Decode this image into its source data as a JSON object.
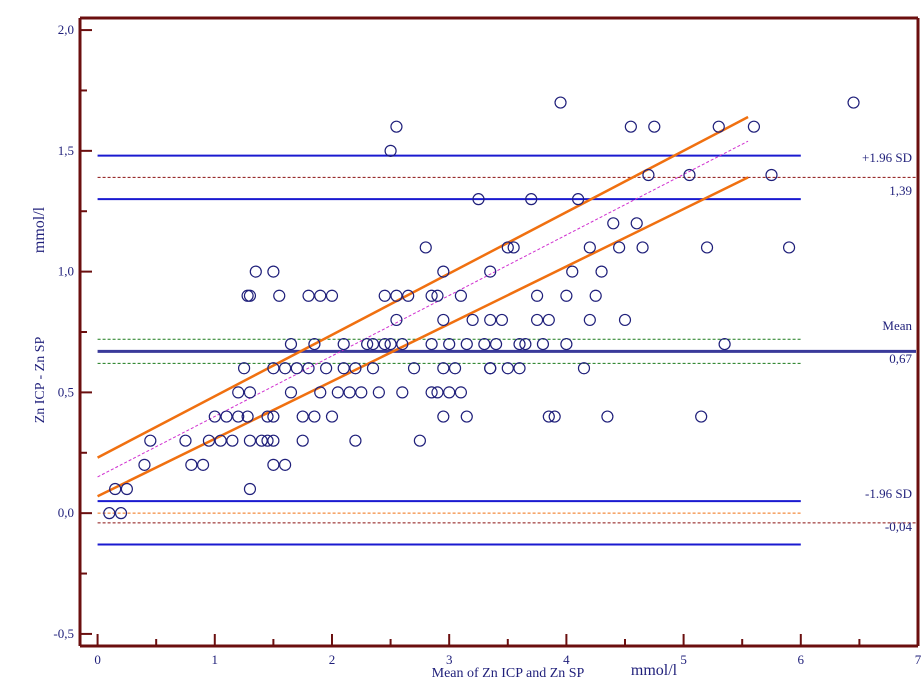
{
  "chart_data": {
    "type": "scatter",
    "title": "",
    "xlabel": "Mean of Zn ICP and Zn SP",
    "xunit": "mmol/l",
    "ylabel": "Zn ICP - Zn SP",
    "yunit": "mmol/l",
    "xlim": [
      -0.15,
      7
    ],
    "ylim": [
      -0.55,
      2.05
    ],
    "x_ticks": [
      "0",
      "1",
      "2",
      "3",
      "4",
      "5",
      "6",
      "7"
    ],
    "x_tick_values": [
      0,
      1,
      2,
      3,
      4,
      5,
      6,
      7
    ],
    "y_ticks": [
      "-0,5",
      "0,0",
      "0,5",
      "1,0",
      "1,5",
      "2,0"
    ],
    "y_tick_values": [
      -0.5,
      0,
      0.5,
      1.0,
      1.5,
      2.0
    ],
    "points": [
      [
        0.1,
        0.0
      ],
      [
        0.2,
        0.0
      ],
      [
        0.15,
        0.1
      ],
      [
        0.25,
        0.1
      ],
      [
        0.4,
        0.2
      ],
      [
        0.45,
        0.3
      ],
      [
        0.75,
        0.3
      ],
      [
        0.8,
        0.2
      ],
      [
        0.9,
        0.2
      ],
      [
        0.95,
        0.3
      ],
      [
        1.0,
        0.4
      ],
      [
        1.05,
        0.3
      ],
      [
        1.1,
        0.4
      ],
      [
        1.15,
        0.3
      ],
      [
        1.2,
        0.5
      ],
      [
        1.2,
        0.4
      ],
      [
        1.25,
        0.6
      ],
      [
        1.28,
        0.4
      ],
      [
        1.3,
        0.3
      ],
      [
        1.3,
        0.5
      ],
      [
        1.28,
        0.9
      ],
      [
        1.3,
        0.9
      ],
      [
        1.3,
        0.1
      ],
      [
        1.35,
        1.0
      ],
      [
        1.4,
        0.3
      ],
      [
        1.45,
        0.3
      ],
      [
        1.45,
        0.4
      ],
      [
        1.5,
        0.3
      ],
      [
        1.5,
        0.4
      ],
      [
        1.5,
        0.6
      ],
      [
        1.5,
        1.0
      ],
      [
        1.5,
        0.2
      ],
      [
        1.55,
        0.9
      ],
      [
        1.6,
        0.2
      ],
      [
        1.6,
        0.6
      ],
      [
        1.65,
        0.7
      ],
      [
        1.65,
        0.5
      ],
      [
        1.7,
        0.6
      ],
      [
        1.75,
        0.4
      ],
      [
        1.75,
        0.3
      ],
      [
        1.8,
        0.9
      ],
      [
        1.8,
        0.6
      ],
      [
        1.85,
        0.4
      ],
      [
        1.85,
        0.7
      ],
      [
        1.9,
        0.5
      ],
      [
        1.9,
        0.9
      ],
      [
        1.95,
        0.6
      ],
      [
        2.0,
        0.4
      ],
      [
        2.0,
        0.9
      ],
      [
        2.05,
        0.5
      ],
      [
        2.1,
        0.6
      ],
      [
        2.1,
        0.7
      ],
      [
        2.15,
        0.5
      ],
      [
        2.2,
        0.6
      ],
      [
        2.2,
        0.3
      ],
      [
        2.25,
        0.5
      ],
      [
        2.3,
        0.7
      ],
      [
        2.35,
        0.6
      ],
      [
        2.35,
        0.7
      ],
      [
        2.4,
        0.5
      ],
      [
        2.45,
        0.9
      ],
      [
        2.45,
        0.7
      ],
      [
        2.5,
        1.5
      ],
      [
        2.5,
        0.7
      ],
      [
        2.55,
        0.9
      ],
      [
        2.55,
        1.6
      ],
      [
        2.55,
        0.8
      ],
      [
        2.6,
        0.7
      ],
      [
        2.6,
        0.5
      ],
      [
        2.65,
        0.9
      ],
      [
        2.7,
        0.6
      ],
      [
        2.75,
        0.3
      ],
      [
        2.8,
        1.1
      ],
      [
        2.85,
        0.5
      ],
      [
        2.85,
        0.7
      ],
      [
        2.85,
        0.9
      ],
      [
        2.9,
        0.5
      ],
      [
        2.9,
        0.9
      ],
      [
        2.95,
        0.4
      ],
      [
        2.95,
        0.6
      ],
      [
        2.95,
        1.0
      ],
      [
        2.95,
        0.8
      ],
      [
        3.0,
        0.7
      ],
      [
        3.0,
        0.5
      ],
      [
        3.05,
        0.6
      ],
      [
        3.1,
        0.9
      ],
      [
        3.1,
        0.5
      ],
      [
        3.15,
        0.4
      ],
      [
        3.15,
        0.7
      ],
      [
        3.2,
        0.8
      ],
      [
        3.25,
        1.3
      ],
      [
        3.3,
        0.7
      ],
      [
        3.35,
        0.6
      ],
      [
        3.35,
        0.8
      ],
      [
        3.35,
        1.0
      ],
      [
        3.35,
        0.6
      ],
      [
        3.4,
        0.7
      ],
      [
        3.45,
        0.8
      ],
      [
        3.5,
        0.6
      ],
      [
        3.5,
        1.1
      ],
      [
        3.55,
        1.1
      ],
      [
        3.6,
        0.7
      ],
      [
        3.6,
        0.6
      ],
      [
        3.65,
        0.7
      ],
      [
        3.7,
        1.3
      ],
      [
        3.75,
        0.8
      ],
      [
        3.75,
        0.9
      ],
      [
        3.8,
        0.7
      ],
      [
        3.85,
        0.4
      ],
      [
        3.85,
        0.8
      ],
      [
        3.9,
        0.4
      ],
      [
        3.95,
        1.7
      ],
      [
        4.0,
        0.7
      ],
      [
        4.0,
        0.9
      ],
      [
        4.05,
        1.0
      ],
      [
        4.1,
        1.3
      ],
      [
        4.15,
        0.6
      ],
      [
        4.2,
        0.8
      ],
      [
        4.2,
        1.1
      ],
      [
        4.25,
        0.9
      ],
      [
        4.3,
        1.0
      ],
      [
        4.35,
        0.4
      ],
      [
        4.4,
        1.2
      ],
      [
        4.45,
        1.1
      ],
      [
        4.5,
        0.8
      ],
      [
        4.55,
        1.6
      ],
      [
        4.6,
        1.2
      ],
      [
        4.65,
        1.1
      ],
      [
        4.7,
        1.4
      ],
      [
        4.75,
        1.6
      ],
      [
        5.05,
        1.4
      ],
      [
        5.15,
        0.4
      ],
      [
        5.2,
        1.1
      ],
      [
        5.35,
        0.7
      ],
      [
        5.3,
        1.6
      ],
      [
        5.6,
        1.6
      ],
      [
        5.75,
        1.4
      ],
      [
        5.9,
        1.1
      ],
      [
        6.45,
        1.7
      ]
    ],
    "reference_lines": {
      "mean": 0.67,
      "upper_loa": 1.39,
      "lower_loa": -0.04,
      "mean_ci": [
        0.62,
        0.72
      ],
      "upper_loa_ci": [
        1.3,
        1.48
      ],
      "lower_loa_ci": [
        -0.13,
        0.05
      ],
      "zero_line": 0.0
    },
    "regression": {
      "start": [
        0.0,
        0.15
      ],
      "end": [
        5.55,
        1.54
      ],
      "ci_upper": [
        [
          0.0,
          0.23
        ],
        [
          5.55,
          1.64
        ]
      ],
      "ci_lower": [
        [
          0.0,
          0.07
        ],
        [
          5.55,
          1.39
        ]
      ]
    },
    "annotations": {
      "upper_label": "+1.96 SD",
      "upper_value": "1,39",
      "mean_label": "Mean",
      "mean_value": "0,67",
      "lower_label": "-1.96 SD",
      "lower_value": "-0,04"
    },
    "colors": {
      "frame": "#6b0f0f",
      "points": "#1f1f7a",
      "loa": "#1a1ad0",
      "mean": "#3a3a9a",
      "regression": "#f07010",
      "regression_dash": "#d030d0",
      "ci_dash": "#1a7a1a",
      "loa_dash": "#8b1010",
      "zero_dash": "#f07010",
      "text": "#1f1f7a"
    }
  }
}
